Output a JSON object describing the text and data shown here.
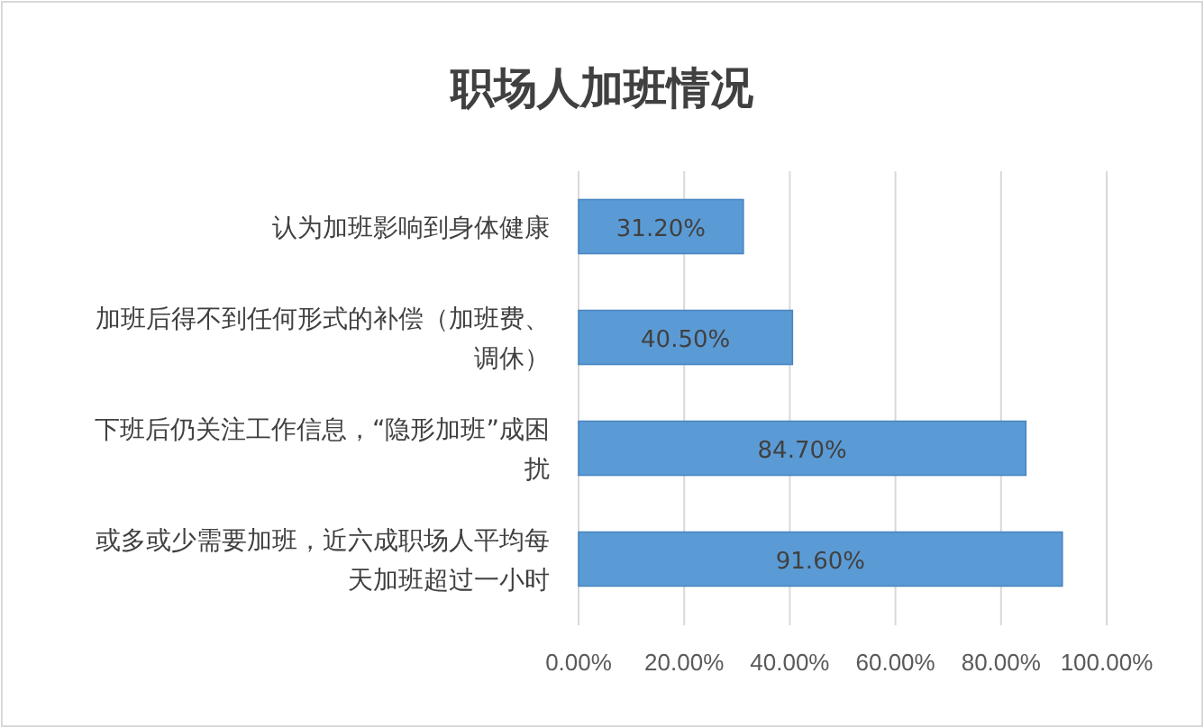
{
  "chart_data": {
    "type": "bar",
    "orientation": "horizontal",
    "title": "职场人加班情况",
    "categories": [
      "认为加班影响到身体健康",
      "加班后得不到任何形式的补偿（加班费、调休）",
      "下班后仍关注工作信息，“隐形加班”成困扰",
      "或多或少需要加班，近六成职场人平均每天加班超过一小时"
    ],
    "values": [
      31.2,
      40.5,
      84.7,
      91.6
    ],
    "value_labels": [
      "31.20%",
      "40.50%",
      "84.70%",
      "91.60%"
    ],
    "color": "#5b9bd5",
    "xlim": [
      0,
      100
    ],
    "xticks": [
      {
        "value": 0,
        "label": "0.00%"
      },
      {
        "value": 20,
        "label": "20.00%"
      },
      {
        "value": 40,
        "label": "40.00%"
      },
      {
        "value": 60,
        "label": "60.00%"
      },
      {
        "value": 80,
        "label": "80.00%"
      },
      {
        "value": 100,
        "label": "100.00%"
      }
    ],
    "grid": "x"
  }
}
